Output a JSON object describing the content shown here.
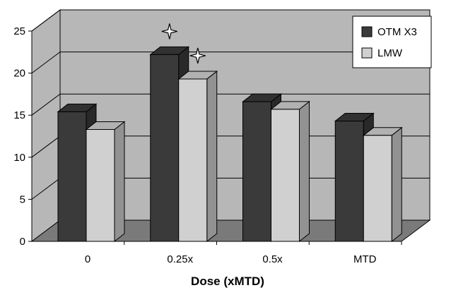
{
  "chart_data": {
    "type": "bar",
    "style": "3d-clustered",
    "xlabel": "Dose (xMTD)",
    "ylabel": "",
    "title": "",
    "categories": [
      "0",
      "0.25x",
      "0.5x",
      "MTD"
    ],
    "series": [
      {
        "name": "OTM X3",
        "values": [
          15.4,
          22.2,
          16.6,
          14.3
        ],
        "color": "#3a3a3a"
      },
      {
        "name": "LMW",
        "values": [
          13.3,
          19.3,
          15.7,
          12.6
        ],
        "color": "#d0d0d0"
      }
    ],
    "yticks": [
      "0",
      "5",
      "10",
      "15",
      "20",
      "25"
    ],
    "ylim": [
      0,
      25
    ],
    "grid": true,
    "legend_position": "top-right",
    "annotations": [
      {
        "symbol": "four-point-star",
        "category": "0.25x",
        "series": "OTM X3"
      },
      {
        "symbol": "four-point-star",
        "category": "0.25x",
        "series": "LMW"
      }
    ],
    "colors": {
      "wall": "#b7b7b7",
      "floor": "#7a7a7a",
      "gridline": "#000000"
    }
  }
}
